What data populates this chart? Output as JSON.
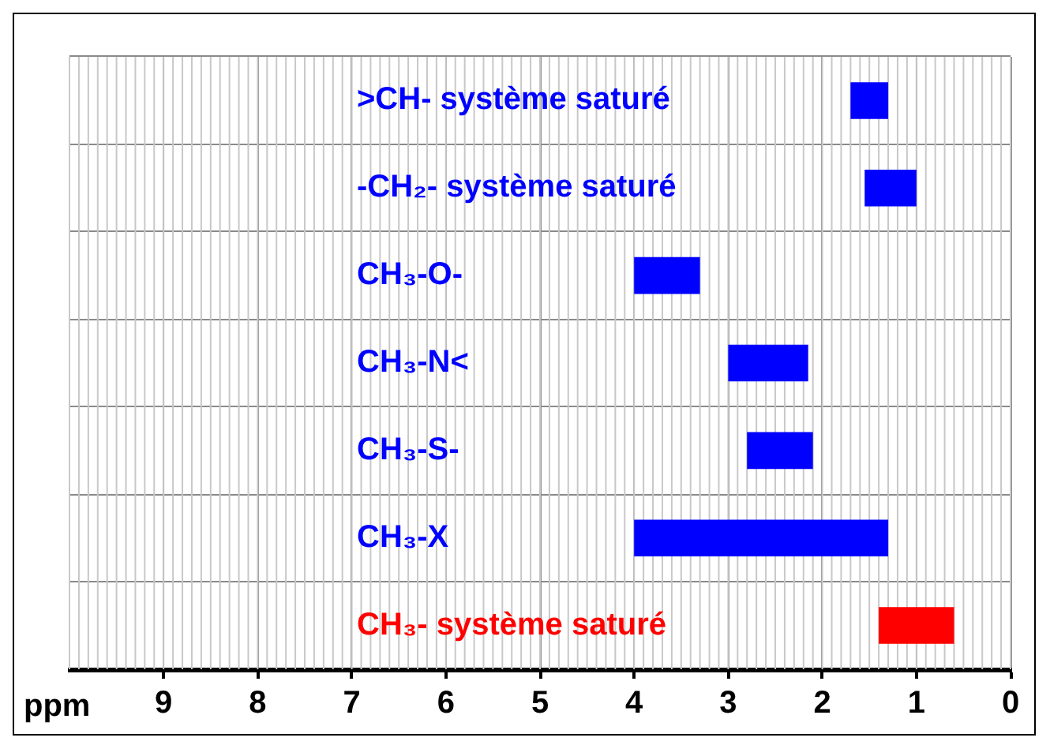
{
  "chart_data": {
    "type": "bar",
    "orientation": "horizontal",
    "xlabel": "ppm",
    "categories": [
      ">CH- système saturé",
      "-CH₂- système saturé",
      "CH₃-O-",
      "CH₃-N<",
      "CH₃-S-",
      "CH₃-X",
      "CH₃- système saturé"
    ],
    "base": [
      1.3,
      1.0,
      3.3,
      2.15,
      2.1,
      1.3,
      0.6
    ],
    "values": [
      0.4,
      0.55,
      0.7,
      0.85,
      0.7,
      2.7,
      0.8
    ],
    "colors": [
      "#0000ff",
      "#0000ff",
      "#0000ff",
      "#0000ff",
      "#0000ff",
      "#0000ff",
      "#ff0000"
    ],
    "xlim": [
      10,
      0
    ],
    "xticks": [
      9,
      8,
      7,
      6,
      5,
      4,
      3,
      2,
      1,
      0
    ],
    "grid": true,
    "legend": false
  }
}
